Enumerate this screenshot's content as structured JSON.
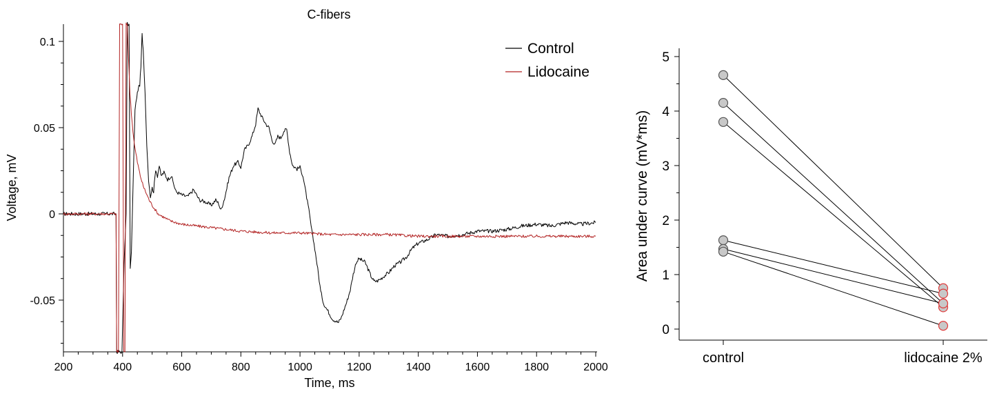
{
  "chart_data": [
    {
      "type": "line",
      "title": "C-fibers",
      "xlabel": "Time, ms",
      "ylabel": "Voltage, mV",
      "xlim": [
        200,
        2000
      ],
      "ylim": [
        -0.08,
        0.11
      ],
      "xticks": [
        "200",
        "400",
        "600",
        "800",
        "1000",
        "1200",
        "1400",
        "1600",
        "1800",
        "2000"
      ],
      "yticks": [
        "0.1",
        "0.05",
        "0",
        "-0.05"
      ],
      "legend_position": "top-right",
      "series": [
        {
          "name": "Control",
          "color": "#000000",
          "x": [
            200,
            250,
            300,
            350,
            378,
            380,
            384,
            388,
            392,
            398,
            405,
            412,
            416,
            422,
            426,
            430,
            436,
            442,
            448,
            452,
            458,
            462,
            466,
            470,
            476,
            482,
            488,
            494,
            500,
            505,
            512,
            518,
            524,
            530,
            540,
            552,
            565,
            580,
            600,
            620,
            640,
            660,
            680,
            700,
            715,
            725,
            732,
            745,
            760,
            775,
            790,
            800,
            812,
            825,
            838,
            850,
            858,
            866,
            875,
            885,
            895,
            905,
            915,
            925,
            935,
            945,
            955,
            965,
            975,
            990,
            1000,
            1010,
            1020,
            1030,
            1040,
            1050,
            1060,
            1070,
            1080,
            1090,
            1100,
            1110,
            1120,
            1130,
            1140,
            1150,
            1160,
            1170,
            1180,
            1190,
            1200,
            1210,
            1220,
            1230,
            1240,
            1250,
            1260,
            1270,
            1285,
            1300,
            1320,
            1340,
            1360,
            1380,
            1400,
            1430,
            1460,
            1500,
            1550,
            1600,
            1650,
            1700,
            1750,
            1800,
            1850,
            1900,
            1950,
            2000
          ],
          "y": [
            0.0,
            0.0,
            0.0,
            0.0,
            0.0,
            -0.08,
            -0.08,
            -0.08,
            -0.08,
            -0.08,
            -0.03,
            0.0,
            0.11,
            0.11,
            -0.032,
            -0.022,
            0.02,
            0.06,
            0.068,
            0.072,
            0.075,
            0.085,
            0.104,
            0.095,
            0.07,
            0.04,
            0.02,
            0.01,
            0.015,
            0.013,
            0.026,
            0.022,
            0.028,
            0.022,
            0.024,
            0.02,
            0.022,
            0.013,
            0.011,
            0.01,
            0.014,
            0.008,
            0.007,
            0.005,
            0.008,
            0.006,
            0.002,
            0.009,
            0.021,
            0.028,
            0.03,
            0.027,
            0.037,
            0.04,
            0.045,
            0.052,
            0.061,
            0.058,
            0.055,
            0.052,
            0.05,
            0.043,
            0.04,
            0.045,
            0.044,
            0.048,
            0.049,
            0.036,
            0.028,
            0.026,
            0.027,
            0.022,
            0.012,
            0.002,
            -0.01,
            -0.02,
            -0.032,
            -0.045,
            -0.052,
            -0.055,
            -0.058,
            -0.061,
            -0.062,
            -0.063,
            -0.06,
            -0.055,
            -0.05,
            -0.044,
            -0.035,
            -0.028,
            -0.026,
            -0.027,
            -0.028,
            -0.032,
            -0.036,
            -0.039,
            -0.039,
            -0.038,
            -0.036,
            -0.034,
            -0.03,
            -0.028,
            -0.025,
            -0.02,
            -0.017,
            -0.015,
            -0.012,
            -0.013,
            -0.012,
            -0.01,
            -0.01,
            -0.009,
            -0.007,
            -0.006,
            -0.007,
            -0.005,
            -0.006,
            -0.005
          ]
        },
        {
          "name": "Lidocaine",
          "color": "#b22222",
          "x": [
            200,
            250,
            300,
            350,
            378,
            380,
            384,
            386,
            388,
            390,
            392,
            400,
            404,
            408,
            412,
            416,
            420,
            425,
            430,
            435,
            440,
            450,
            460,
            470,
            480,
            490,
            500,
            520,
            540,
            560,
            580,
            600,
            650,
            700,
            750,
            800,
            900,
            1000,
            1100,
            1200,
            1300,
            1400,
            1500,
            1600,
            1700,
            1800,
            1900,
            2000
          ],
          "y": [
            0.0,
            0.0,
            0.0,
            0.0,
            0.0,
            -0.08,
            -0.08,
            -0.08,
            0.0,
            0.11,
            0.11,
            0.11,
            -0.08,
            -0.08,
            0.11,
            0.11,
            0.09,
            0.07,
            0.058,
            0.048,
            0.04,
            0.03,
            0.022,
            0.016,
            0.012,
            0.008,
            0.005,
            0.0,
            -0.002,
            -0.004,
            -0.005,
            -0.006,
            -0.007,
            -0.008,
            -0.009,
            -0.01,
            -0.011,
            -0.011,
            -0.012,
            -0.012,
            -0.012,
            -0.013,
            -0.013,
            -0.013,
            -0.013,
            -0.013,
            -0.013,
            -0.013
          ]
        }
      ]
    },
    {
      "type": "scatter",
      "title": "",
      "xlabel": "",
      "ylabel": "Area under curve (mV*ms)",
      "ylim": [
        -0.2,
        5
      ],
      "categories": [
        "control",
        "lidocaine 2%"
      ],
      "yticks": [
        "0",
        "1",
        "2",
        "3",
        "4",
        "5"
      ],
      "series": [
        {
          "values": [
            4.66,
            0.75
          ]
        },
        {
          "values": [
            4.15,
            0.47
          ]
        },
        {
          "values": [
            3.8,
            0.4
          ]
        },
        {
          "values": [
            1.63,
            0.65
          ]
        },
        {
          "values": [
            1.47,
            0.47
          ]
        },
        {
          "values": [
            1.42,
            0.06
          ]
        }
      ],
      "colors": {
        "control_marker_edge": "#555555",
        "lidocaine_marker_edge": "#e03a3a",
        "marker_fill": "#c8c8c8",
        "line": "#000000"
      }
    }
  ]
}
